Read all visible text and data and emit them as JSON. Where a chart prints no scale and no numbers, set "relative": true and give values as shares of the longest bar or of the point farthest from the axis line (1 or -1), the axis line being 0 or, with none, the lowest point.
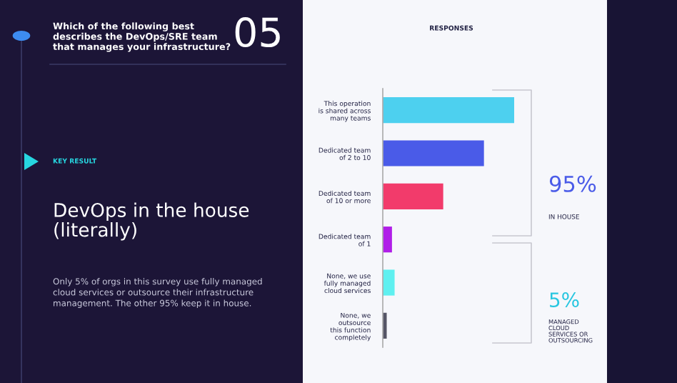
{
  "chart_data": {
    "type": "bar",
    "orientation": "horizontal",
    "relative": true,
    "title": "Which of the following best\ndescribes the DevOps/SRE team\nthat manages your infrastructure?",
    "subtitle": "DevOps in the house\n(literally)",
    "categories": [
      "This operation\nis shared across\nmany teams",
      "Dedicated team\nof 2 to 10",
      "Dedicated team\nof 10 or more",
      "Dedicated team\nof 1",
      "None, we use\nfully managed\ncloud services",
      "None, we\noutsource\nthis function\ncompletely"
    ],
    "values": [
      1,
      0.77,
      0.46,
      0.07,
      0.09,
      0.03
    ],
    "colors": [
      "#4dd0ef",
      "#4a5be8",
      "#f23b6b",
      "#b01ee8",
      "#5ff0f0",
      "#555566"
    ],
    "annotations": [
      "05",
      "KEY RESULT",
      "Only 5% of orgs in this survey use fully managed\ncloud services or outsource their infrastructure\nmanagement. The other 95% keep it in house.",
      "RESPONSES",
      "95%",
      "IN HOUSE",
      "5%",
      "MANAGED\nCLOUD\nSERVICES OR\nOUTSOURCING"
    ],
    "grid": false,
    "legend": false
  }
}
